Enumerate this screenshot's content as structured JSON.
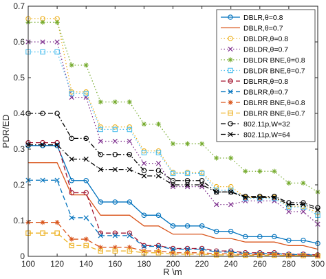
{
  "chart_data": {
    "type": "line",
    "xlabel": "R \\m",
    "ylabel": "PDR/ED",
    "xlim": [
      100,
      300
    ],
    "ylim": [
      0,
      0.7
    ],
    "xticks": [
      100,
      120,
      140,
      160,
      180,
      200,
      220,
      240,
      260,
      280,
      300
    ],
    "yticks": [
      0,
      0.1,
      0.2,
      0.3,
      0.4,
      0.5,
      0.6,
      0.7
    ],
    "x": [
      100,
      110,
      120,
      130,
      140,
      150,
      160,
      170,
      180,
      190,
      200,
      210,
      220,
      230,
      240,
      250,
      260,
      270,
      280,
      290,
      300
    ],
    "legend_position": "top-right",
    "grid": false,
    "series": [
      {
        "name": "DBLR,θ=0.8",
        "color": "#0072BD",
        "dash": "solid",
        "marker": "circle",
        "values": [
          0.31,
          0.31,
          0.31,
          0.212,
          0.212,
          0.152,
          0.152,
          0.152,
          0.115,
          0.115,
          0.085,
          0.085,
          0.085,
          0.07,
          0.07,
          0.055,
          0.055,
          0.055,
          0.045,
          0.045,
          0.036
        ]
      },
      {
        "name": "DBLR,θ=0.7",
        "color": "#D95319",
        "dash": "solid",
        "marker": "none",
        "values": [
          0.262,
          0.262,
          0.262,
          0.172,
          0.172,
          0.115,
          0.115,
          0.115,
          0.085,
          0.085,
          0.062,
          0.062,
          0.062,
          0.05,
          0.05,
          0.04,
          0.04,
          0.04,
          0.03,
          0.03,
          0.02
        ]
      },
      {
        "name": "DBLDR,θ=0.8",
        "color": "#EDB120",
        "dash": "dot",
        "marker": "circle",
        "values": [
          0.665,
          0.665,
          0.665,
          0.46,
          0.46,
          0.362,
          0.362,
          0.362,
          0.295,
          0.295,
          0.235,
          0.235,
          0.235,
          0.195,
          0.195,
          0.165,
          0.165,
          0.165,
          0.14,
          0.14,
          0.122
        ]
      },
      {
        "name": "DBLDR,θ=0.7",
        "color": "#7E2F8E",
        "dash": "dot",
        "marker": "x",
        "values": [
          0.6,
          0.6,
          0.6,
          0.445,
          0.445,
          0.322,
          0.322,
          0.322,
          0.26,
          0.26,
          0.195,
          0.195,
          0.195,
          0.145,
          0.145,
          0.155,
          0.155,
          0.155,
          0.125,
          0.125,
          0.09
        ]
      },
      {
        "name": "DBLDR BNE,θ=0.8",
        "color": "#77AC30",
        "dash": "dot",
        "marker": "star",
        "values": [
          0.655,
          0.655,
          0.655,
          0.535,
          0.535,
          0.432,
          0.432,
          0.432,
          0.37,
          0.37,
          0.315,
          0.315,
          0.315,
          0.275,
          0.275,
          0.238,
          0.238,
          0.238,
          0.205,
          0.205,
          0.18
        ]
      },
      {
        "name": "DBLDR BNE,θ=0.7",
        "color": "#4DBEEE",
        "dash": "dot",
        "marker": "square",
        "values": [
          0.572,
          0.572,
          0.572,
          0.455,
          0.455,
          0.355,
          0.355,
          0.355,
          0.29,
          0.29,
          0.232,
          0.232,
          0.232,
          0.185,
          0.185,
          0.162,
          0.162,
          0.162,
          0.138,
          0.138,
          0.115
        ]
      },
      {
        "name": "DBLRR,θ=0.8",
        "color": "#A2142F",
        "dash": "dash",
        "marker": "circle",
        "values": [
          0.318,
          0.318,
          0.318,
          0.178,
          0.178,
          0.065,
          0.065,
          0.065,
          0.03,
          0.03,
          0.022,
          0.022,
          0.022,
          0.015,
          0.015,
          0.01,
          0.01,
          0.01,
          0.006,
          0.006,
          0.004
        ]
      },
      {
        "name": "DBLRR,θ=0.7",
        "color": "#0072BD",
        "dash": "dash",
        "marker": "x",
        "values": [
          0.213,
          0.213,
          0.213,
          0.108,
          0.108,
          0.058,
          0.058,
          0.058,
          0.028,
          0.028,
          0.02,
          0.02,
          0.02,
          0.012,
          0.012,
          0.008,
          0.008,
          0.008,
          0.005,
          0.005,
          0.003
        ]
      },
      {
        "name": "DBLRR BNE,θ=0.8",
        "color": "#D95319",
        "dash": "dash",
        "marker": "star",
        "values": [
          0.095,
          0.095,
          0.095,
          0.048,
          0.048,
          0.025,
          0.025,
          0.025,
          0.015,
          0.015,
          0.01,
          0.01,
          0.01,
          0.007,
          0.007,
          0.005,
          0.005,
          0.005,
          0.003,
          0.003,
          0.002
        ]
      },
      {
        "name": "DBLRR BNE,θ=0.7",
        "color": "#EDB120",
        "dash": "dash",
        "marker": "square",
        "values": [
          0.065,
          0.065,
          0.065,
          0.03,
          0.03,
          0.015,
          0.015,
          0.015,
          0.01,
          0.01,
          0.006,
          0.006,
          0.006,
          0.004,
          0.004,
          0.003,
          0.003,
          0.003,
          0.002,
          0.002,
          0.001
        ]
      },
      {
        "name": "802.11p,W=32",
        "color": "#000000",
        "dash": "dashdot",
        "marker": "circle",
        "values": [
          0.4,
          0.4,
          0.4,
          0.33,
          0.33,
          0.285,
          0.285,
          0.285,
          0.24,
          0.24,
          0.212,
          0.212,
          0.212,
          0.18,
          0.18,
          0.168,
          0.168,
          0.168,
          0.15,
          0.15,
          0.136
        ]
      },
      {
        "name": "802.11p,W=64",
        "color": "#000000",
        "dash": "dashdot",
        "marker": "x",
        "values": [
          0.312,
          0.312,
          0.312,
          0.272,
          0.272,
          0.243,
          0.243,
          0.243,
          0.225,
          0.225,
          0.2,
          0.2,
          0.2,
          0.18,
          0.18,
          0.165,
          0.165,
          0.165,
          0.145,
          0.145,
          0.13
        ]
      }
    ]
  }
}
